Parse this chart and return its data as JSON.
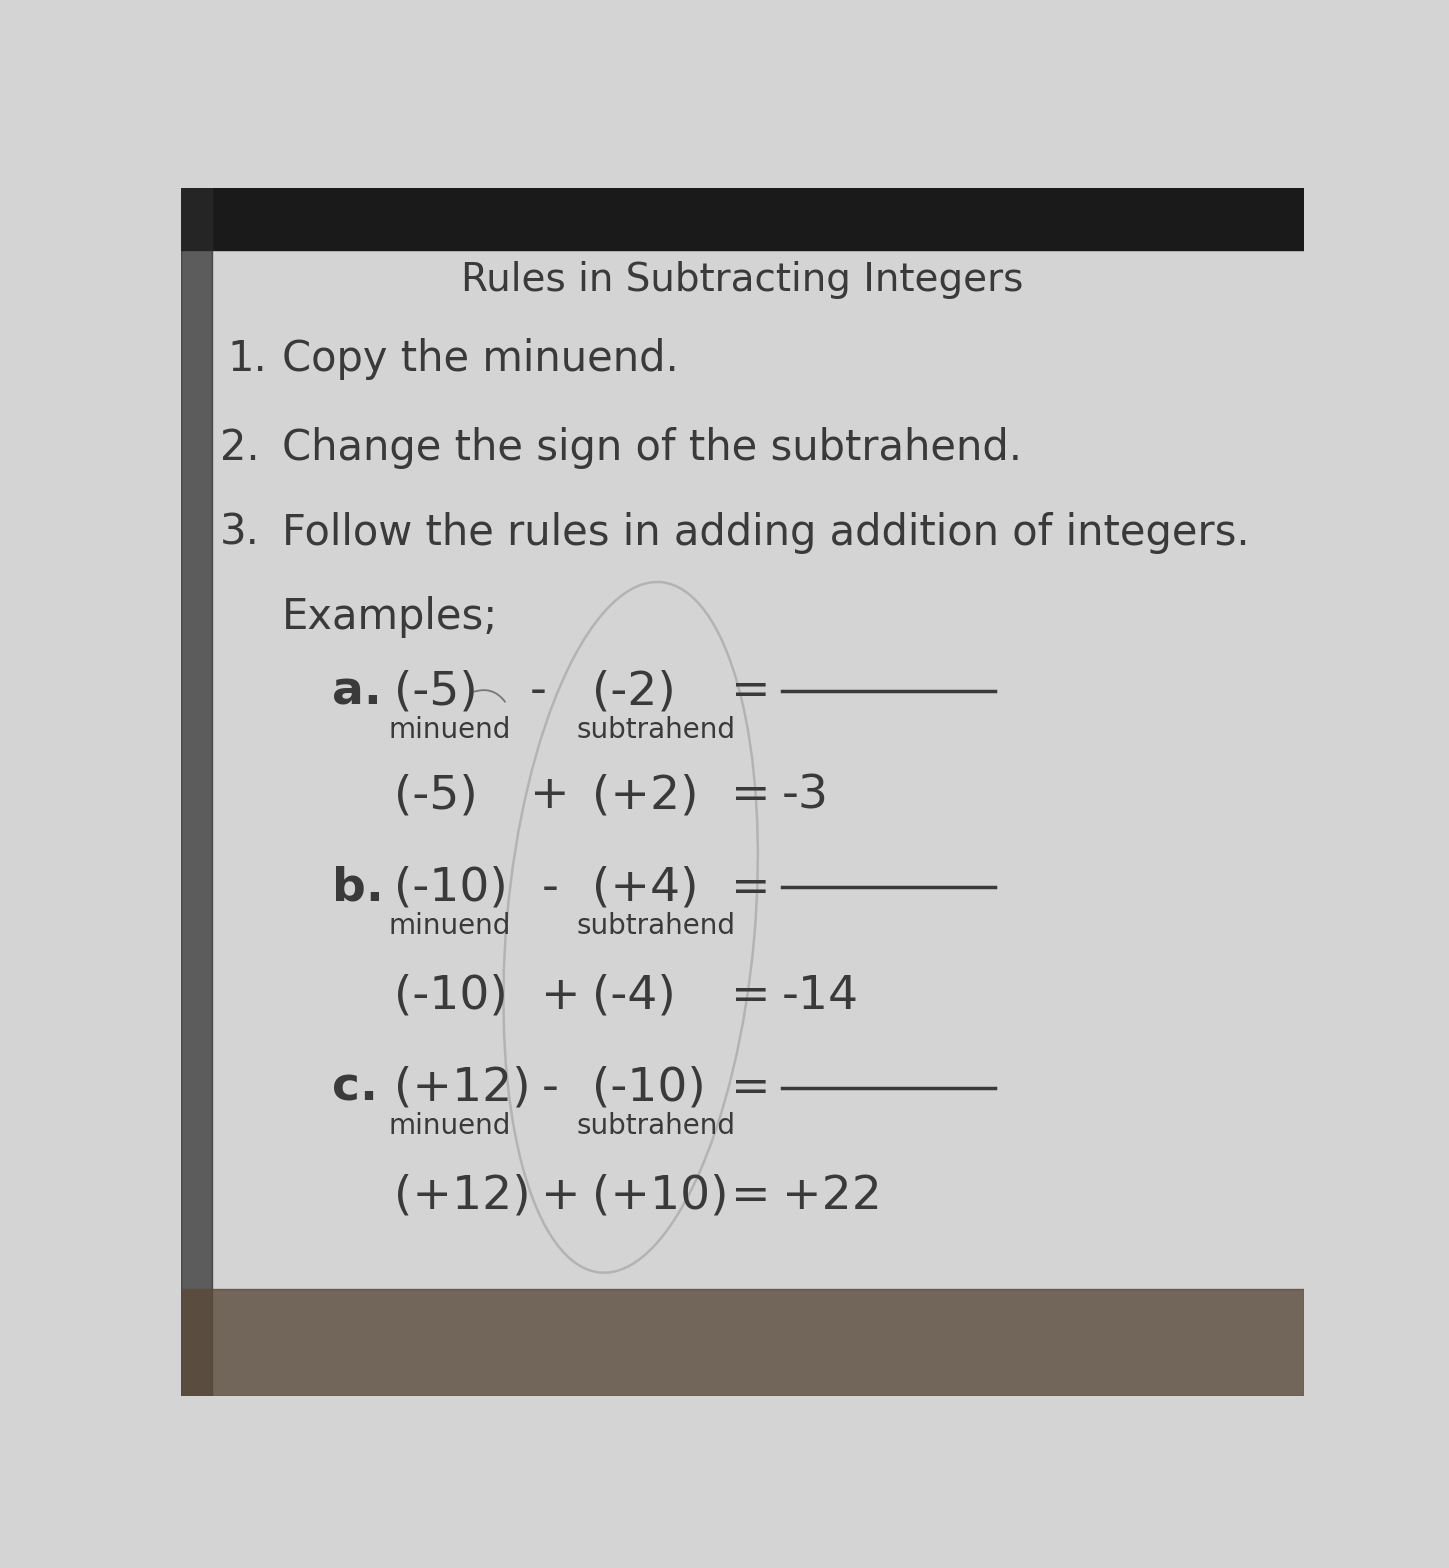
{
  "title": "Rules in Subtracting Integers",
  "rule1": "Copy the minuend.",
  "rule2": "Change the sign of the subtrahend.",
  "rule3": "Follow the rules in adding addition of integers.",
  "examples_header": "Examples;",
  "bg_color": "#d4d4d4",
  "paper_color": "#d8d8d8",
  "text_color": "#3a3a3a",
  "font_size_title": 28,
  "font_size_rules": 30,
  "font_size_examples": 30,
  "font_size_label": 20,
  "font_size_eq": 34,
  "note1_num": "1.",
  "note2_num": "2.",
  "note3_num": "3."
}
